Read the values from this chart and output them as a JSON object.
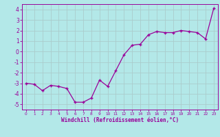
{
  "x": [
    0,
    1,
    2,
    3,
    4,
    5,
    6,
    7,
    8,
    9,
    10,
    11,
    12,
    13,
    14,
    15,
    16,
    17,
    18,
    19,
    20,
    21,
    22,
    23
  ],
  "y": [
    -3.0,
    -3.1,
    -3.7,
    -3.2,
    -3.3,
    -3.5,
    -4.8,
    -4.8,
    -4.4,
    -2.7,
    -3.3,
    -1.8,
    -0.3,
    0.6,
    0.7,
    1.6,
    1.9,
    1.8,
    1.8,
    2.0,
    1.9,
    1.8,
    1.2,
    4.1
  ],
  "line_color": "#990099",
  "marker": "+",
  "bg_color": "#b3e8e8",
  "grid_color": "#aacccc",
  "xlabel": "Windchill (Refroidissement éolien,°C)",
  "xlabel_color": "#990099",
  "tick_color": "#990099",
  "xlim": [
    -0.5,
    23.5
  ],
  "ylim": [
    -5.5,
    4.5
  ],
  "yticks": [
    -5,
    -4,
    -3,
    -2,
    -1,
    0,
    1,
    2,
    3,
    4
  ],
  "xticks": [
    0,
    1,
    2,
    3,
    4,
    5,
    6,
    7,
    8,
    9,
    10,
    11,
    12,
    13,
    14,
    15,
    16,
    17,
    18,
    19,
    20,
    21,
    22,
    23
  ]
}
